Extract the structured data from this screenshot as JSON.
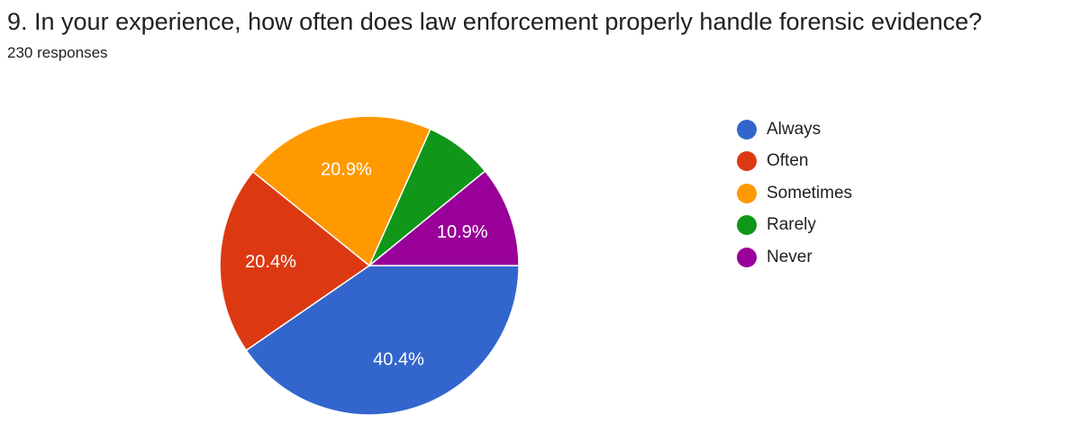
{
  "question": {
    "title": "9. In your experience, how often does law enforcement properly handle forensic evidence?",
    "response_count": "230 responses"
  },
  "chart_data": {
    "type": "pie",
    "title": "9. In your experience, how often does law enforcement properly handle forensic evidence?",
    "categories": [
      "Always",
      "Often",
      "Sometimes",
      "Rarely",
      "Never"
    ],
    "values": [
      40.4,
      20.4,
      20.9,
      7.4,
      10.9
    ],
    "data_labels": [
      "40.4%",
      "20.4%",
      "20.9%",
      "",
      "10.9%"
    ],
    "colors": [
      "#3366cc",
      "#dc3912",
      "#ff9900",
      "#109618",
      "#990099"
    ],
    "legend_position": "right"
  }
}
